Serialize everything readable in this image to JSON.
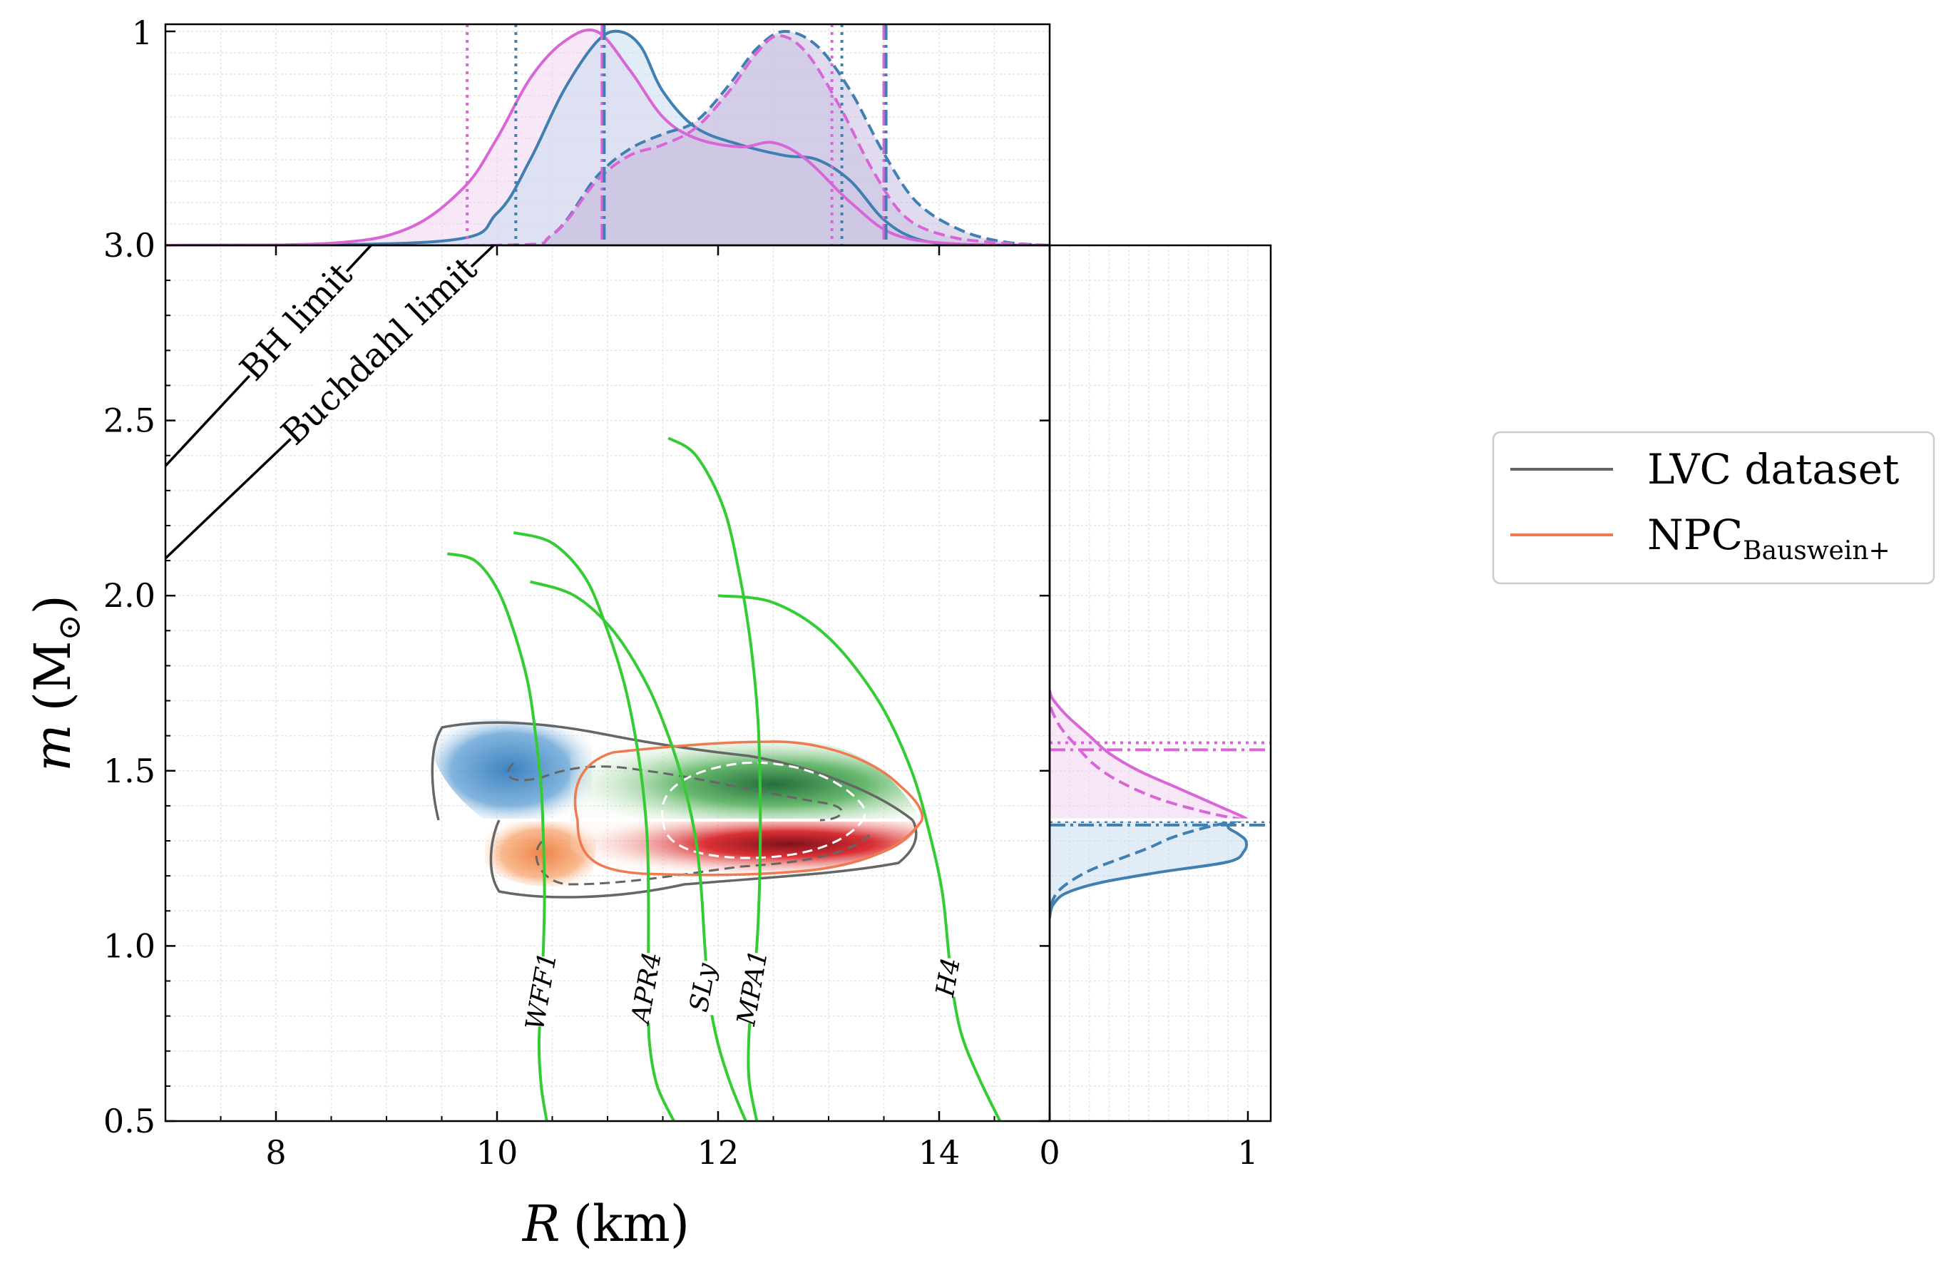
{
  "chart_data": {
    "type": "scatter",
    "subtype": "joint mass-radius posterior with marginal densities",
    "xlabel_var": "R",
    "xlabel_unit": "(km)",
    "ylabel_var": "m",
    "ylabel_unit": "(M",
    "ylabel_unit_sub": "⊙",
    "ylabel_unit_close": ")",
    "xlim": [
      7,
      15.0
    ],
    "ylim": [
      0.5,
      3.0
    ],
    "x_ticks": [
      "8",
      "10",
      "12",
      "14"
    ],
    "y_ticks": [
      "0.5",
      "1.0",
      "1.5",
      "2.0",
      "2.5",
      "3.0"
    ],
    "top_marginal_ticks": [
      "1"
    ],
    "right_marginal_ticks": [
      "0",
      "1"
    ],
    "limit_lines": [
      {
        "label": "BH limit",
        "slope_msun_per_km": 0.3386
      },
      {
        "label": "Buchdahl limit",
        "slope_msun_per_km": 0.3009
      }
    ],
    "eos_curves": [
      {
        "name": "WFF1",
        "points": [
          [
            9.55,
            2.12
          ],
          [
            9.8,
            2.1
          ],
          [
            10.0,
            2.02
          ],
          [
            10.15,
            1.9
          ],
          [
            10.28,
            1.75
          ],
          [
            10.35,
            1.6
          ],
          [
            10.4,
            1.45
          ],
          [
            10.42,
            1.3
          ],
          [
            10.43,
            1.15
          ],
          [
            10.42,
            1.0
          ],
          [
            10.4,
            0.85
          ],
          [
            10.38,
            0.72
          ],
          [
            10.4,
            0.6
          ],
          [
            10.45,
            0.5
          ]
        ],
        "label_at": [
          10.42,
          0.87
        ]
      },
      {
        "name": "APR4",
        "points": [
          [
            10.15,
            2.18
          ],
          [
            10.5,
            2.15
          ],
          [
            10.8,
            2.05
          ],
          [
            11.0,
            1.9
          ],
          [
            11.15,
            1.75
          ],
          [
            11.25,
            1.6
          ],
          [
            11.32,
            1.45
          ],
          [
            11.36,
            1.3
          ],
          [
            11.37,
            1.15
          ],
          [
            11.37,
            1.0
          ],
          [
            11.37,
            0.85
          ],
          [
            11.38,
            0.72
          ],
          [
            11.45,
            0.6
          ],
          [
            11.6,
            0.5
          ]
        ],
        "label_at": [
          11.37,
          0.88
        ]
      },
      {
        "name": "SLy",
        "points": [
          [
            10.3,
            2.04
          ],
          [
            10.7,
            2.0
          ],
          [
            11.05,
            1.9
          ],
          [
            11.35,
            1.75
          ],
          [
            11.55,
            1.6
          ],
          [
            11.7,
            1.45
          ],
          [
            11.8,
            1.3
          ],
          [
            11.85,
            1.15
          ],
          [
            11.88,
            1.0
          ],
          [
            11.92,
            0.85
          ],
          [
            12.0,
            0.72
          ],
          [
            12.12,
            0.6
          ],
          [
            12.25,
            0.5
          ]
        ],
        "label_at": [
          11.88,
          0.88
        ]
      },
      {
        "name": "MPA1",
        "points": [
          [
            11.55,
            2.45
          ],
          [
            11.8,
            2.4
          ],
          [
            12.05,
            2.25
          ],
          [
            12.2,
            2.05
          ],
          [
            12.3,
            1.85
          ],
          [
            12.36,
            1.65
          ],
          [
            12.38,
            1.45
          ],
          [
            12.38,
            1.25
          ],
          [
            12.36,
            1.05
          ],
          [
            12.32,
            0.88
          ],
          [
            12.28,
            0.75
          ],
          [
            12.28,
            0.62
          ],
          [
            12.35,
            0.5
          ]
        ],
        "label_at": [
          12.33,
          0.88
        ]
      },
      {
        "name": "H4",
        "points": [
          [
            12.0,
            2.0
          ],
          [
            12.5,
            1.98
          ],
          [
            13.0,
            1.88
          ],
          [
            13.45,
            1.7
          ],
          [
            13.75,
            1.5
          ],
          [
            13.93,
            1.3
          ],
          [
            14.03,
            1.15
          ],
          [
            14.08,
            1.0
          ],
          [
            14.12,
            0.88
          ],
          [
            14.2,
            0.75
          ],
          [
            14.35,
            0.63
          ],
          [
            14.55,
            0.5
          ]
        ],
        "label_at": [
          14.1,
          0.91
        ]
      }
    ],
    "top_marginal": {
      "series": [
        {
          "name": "LVC dataset (blue, solid)",
          "x": [
            7,
            9.5,
            10.0,
            10.3,
            10.6,
            10.9,
            11.1,
            11.3,
            11.5,
            11.8,
            12.2,
            12.6,
            12.9,
            13.2,
            13.5,
            13.8,
            14.2,
            15
          ],
          "y": [
            0,
            0.02,
            0.15,
            0.4,
            0.72,
            0.95,
            1.0,
            0.93,
            0.72,
            0.55,
            0.47,
            0.42,
            0.4,
            0.3,
            0.12,
            0.03,
            0.005,
            0
          ]
        },
        {
          "name": "NPC Bauswein+ (pink, solid)",
          "x": [
            7,
            8.5,
            9.2,
            9.7,
            10.0,
            10.3,
            10.6,
            10.9,
            11.2,
            11.5,
            11.8,
            12.2,
            12.5,
            12.8,
            13.2,
            13.6,
            14.2,
            15
          ],
          "y": [
            0,
            0.01,
            0.08,
            0.27,
            0.5,
            0.78,
            0.95,
            1.0,
            0.82,
            0.6,
            0.5,
            0.46,
            0.48,
            0.4,
            0.2,
            0.05,
            0.005,
            0
          ]
        },
        {
          "name": "LVC dataset (blue, dashed)",
          "x": [
            7,
            10.0,
            10.5,
            10.9,
            11.2,
            11.5,
            11.8,
            12.1,
            12.35,
            12.6,
            12.9,
            13.2,
            13.5,
            13.8,
            14.2,
            14.6,
            15
          ],
          "y": [
            0,
            0,
            0.05,
            0.32,
            0.45,
            0.52,
            0.58,
            0.75,
            0.92,
            1.0,
            0.93,
            0.72,
            0.43,
            0.2,
            0.07,
            0.015,
            0
          ]
        },
        {
          "name": "NPC Bauswein+ (pink, dashed)",
          "x": [
            7,
            10.0,
            10.5,
            10.9,
            11.2,
            11.5,
            11.8,
            12.1,
            12.35,
            12.55,
            12.8,
            13.1,
            13.4,
            13.7,
            14.1,
            14.6,
            15
          ],
          "y": [
            0,
            0,
            0.05,
            0.3,
            0.42,
            0.47,
            0.55,
            0.72,
            0.9,
            0.98,
            0.9,
            0.65,
            0.35,
            0.13,
            0.04,
            0.01,
            0
          ]
        }
      ],
      "vlines": [
        {
          "x": 9.73,
          "style": "dotted",
          "color": "#d966d6"
        },
        {
          "x": 10.17,
          "style": "dotted",
          "color": "#3f7fb1"
        },
        {
          "x": 10.95,
          "style": "dashdot",
          "color": "#d966d6"
        },
        {
          "x": 10.97,
          "style": "dashdot",
          "color": "#3f7fb1"
        },
        {
          "x": 13.03,
          "style": "dotted",
          "color": "#d966d6"
        },
        {
          "x": 13.12,
          "style": "dotted",
          "color": "#3f7fb1"
        },
        {
          "x": 13.5,
          "style": "dashdot",
          "color": "#d966d6"
        },
        {
          "x": 13.52,
          "style": "dashdot",
          "color": "#3f7fb1"
        }
      ]
    },
    "right_marginal": {
      "series": [
        {
          "name": "NPC Bauswein+ (pink, solid)",
          "m": [
            1.36,
            1.37,
            1.4,
            1.45,
            1.5,
            1.55,
            1.6,
            1.65,
            1.68,
            1.71,
            1.73
          ],
          "d": [
            1.0,
            0.97,
            0.85,
            0.65,
            0.45,
            0.3,
            0.2,
            0.1,
            0.05,
            0.01,
            0
          ]
        },
        {
          "name": "NPC Bauswein+ (pink, dashed)",
          "m": [
            1.36,
            1.38,
            1.42,
            1.47,
            1.52,
            1.58,
            1.62,
            1.66,
            1.69
          ],
          "d": [
            0.98,
            0.8,
            0.55,
            0.35,
            0.22,
            0.12,
            0.06,
            0.02,
            0
          ]
        },
        {
          "name": "LVC dataset (blue, solid)",
          "m": [
            1.36,
            1.34,
            1.32,
            1.3,
            1.27,
            1.24,
            1.21,
            1.18,
            1.15,
            1.12,
            1.1,
            1.08
          ],
          "d": [
            0.95,
            0.9,
            0.95,
            0.99,
            0.98,
            0.9,
            0.55,
            0.25,
            0.08,
            0.02,
            0.005,
            0
          ]
        },
        {
          "name": "LVC dataset (blue, dashed)",
          "m": [
            1.36,
            1.34,
            1.31,
            1.28,
            1.25,
            1.22,
            1.19,
            1.16,
            1.13,
            1.1
          ],
          "d": [
            0.98,
            0.8,
            0.62,
            0.5,
            0.36,
            0.22,
            0.12,
            0.05,
            0.015,
            0
          ]
        }
      ],
      "hlines": [
        {
          "m": 1.58,
          "style": "dotted",
          "color": "#d966d6"
        },
        {
          "m": 1.56,
          "style": "dashdot",
          "color": "#d966d6"
        },
        {
          "m": 1.355,
          "style": "dotted",
          "color": "#3f7fb1"
        },
        {
          "m": 1.345,
          "style": "dashdot",
          "color": "#3f7fb1"
        }
      ]
    },
    "legend": {
      "placement": "right",
      "entries": [
        {
          "label": "LVC dataset",
          "color": "#666666"
        },
        {
          "label": "NPC",
          "subscript": "Bauswein+",
          "color": "#f08050"
        }
      ]
    }
  },
  "colors": {
    "eos_green": "#33cc33",
    "lvc_gray": "#666666",
    "npc_orange": "#f07a50",
    "blue_marginal": "#3f7fb1",
    "pink_marginal": "#d966d6",
    "blue_fill": "#c9dcef",
    "pink_fill": "#f2d4f1",
    "purple_fill": "#ccc3e3"
  }
}
